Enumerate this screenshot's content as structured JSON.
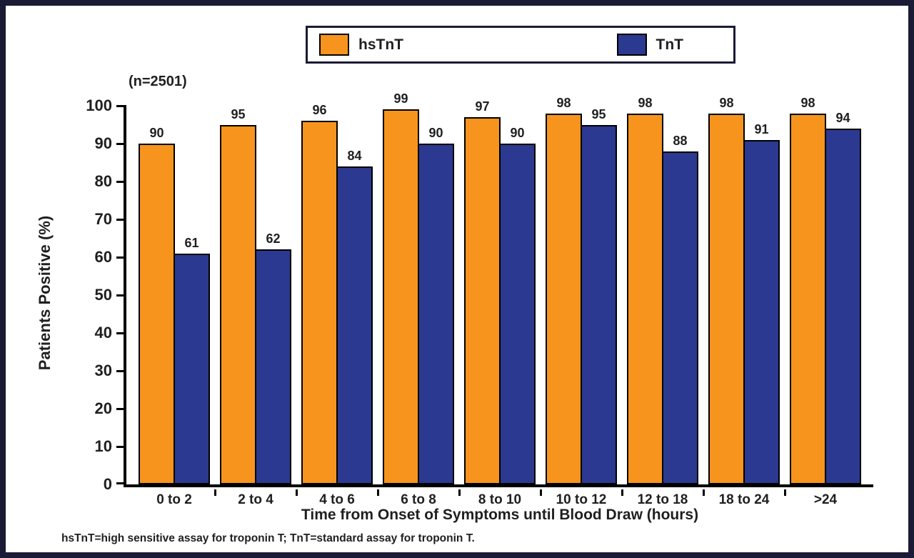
{
  "chart_data": {
    "type": "bar",
    "annotation": "(n=2501)",
    "categories": [
      "0 to 2",
      "2 to 4",
      "4 to 6",
      "6 to 8",
      "8 to 10",
      "10 to 12",
      "12 to 18",
      "18 to 24",
      ">24"
    ],
    "series": [
      {
        "name": "hsTnT",
        "color": "#F7941E",
        "values": [
          90,
          95,
          96,
          99,
          97,
          98,
          98,
          98,
          98
        ]
      },
      {
        "name": "TnT",
        "color": "#2B3990",
        "values": [
          61,
          62,
          84,
          90,
          90,
          95,
          88,
          91,
          94
        ]
      }
    ],
    "xlabel": "Time from Onset of Symptoms until Blood Draw (hours)",
    "ylabel": "Patients Positive (%)",
    "ylim": [
      0,
      100
    ],
    "ytick_step": 10,
    "grid": false,
    "legend_position": "top-center"
  },
  "footnote": "hsTnT=high sensitive assay for troponin T; TnT=standard assay for troponin T.",
  "colors": {
    "frame": "#1b1b35",
    "bar_outline": "#000000",
    "hsTnT": "#F7941E",
    "TnT": "#2B3990"
  }
}
